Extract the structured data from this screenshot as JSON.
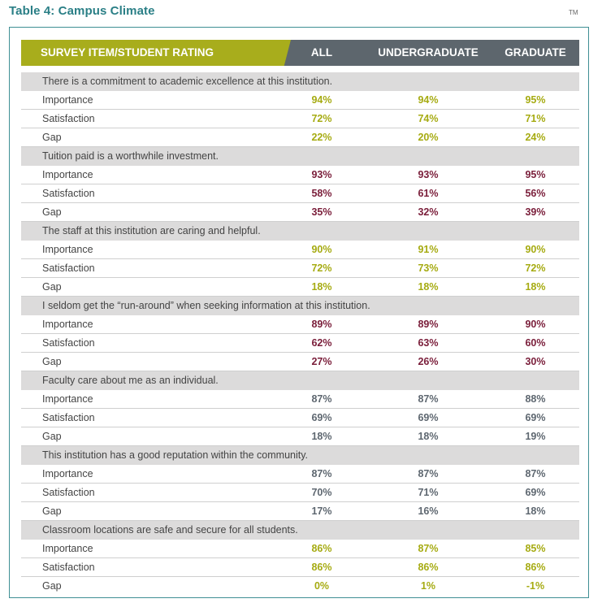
{
  "title": "Table 4: Campus Climate",
  "tm": "TM",
  "header": {
    "item": "SURVEY ITEM/STUDENT RATING",
    "all": "ALL",
    "undergrad": "UNDERGRADUATE",
    "grad": "GRADUATE"
  },
  "colors": {
    "lime": "#a6ab12",
    "maroon": "#7a1e3a",
    "gray": "#5e6770",
    "header_lime": "#a8ad1c",
    "header_gray": "#5d666d",
    "title_teal": "#2a7f86"
  },
  "items": [
    {
      "question": "There is a commitment to academic excellence at this institution.",
      "color": "lime",
      "rows": [
        {
          "label": "Importance",
          "all": "94%",
          "undergrad": "94%",
          "grad": "95%"
        },
        {
          "label": "Satisfaction",
          "all": "72%",
          "undergrad": "74%",
          "grad": "71%"
        },
        {
          "label": "Gap",
          "all": "22%",
          "undergrad": "20%",
          "grad": "24%"
        }
      ]
    },
    {
      "question": "Tuition paid is a worthwhile investment.",
      "color": "maroon",
      "rows": [
        {
          "label": "Importance",
          "all": "93%",
          "undergrad": "93%",
          "grad": "95%"
        },
        {
          "label": "Satisfaction",
          "all": "58%",
          "undergrad": "61%",
          "grad": "56%"
        },
        {
          "label": "Gap",
          "all": "35%",
          "undergrad": "32%",
          "grad": "39%"
        }
      ]
    },
    {
      "question": "The staff at this institution are caring and helpful.",
      "color": "lime",
      "rows": [
        {
          "label": "Importance",
          "all": "90%",
          "undergrad": "91%",
          "grad": "90%"
        },
        {
          "label": "Satisfaction",
          "all": "72%",
          "undergrad": "73%",
          "grad": "72%"
        },
        {
          "label": "Gap",
          "all": "18%",
          "undergrad": "18%",
          "grad": "18%"
        }
      ]
    },
    {
      "question": "I seldom get the “run-around” when seeking information at this institution.",
      "color": "maroon",
      "rows": [
        {
          "label": "Importance",
          "all": "89%",
          "undergrad": "89%",
          "grad": "90%"
        },
        {
          "label": "Satisfaction",
          "all": "62%",
          "undergrad": "63%",
          "grad": "60%"
        },
        {
          "label": "Gap",
          "all": "27%",
          "undergrad": "26%",
          "grad": "30%"
        }
      ]
    },
    {
      "question": "Faculty care about me as an individual.",
      "color": "gray",
      "rows": [
        {
          "label": "Importance",
          "all": "87%",
          "undergrad": "87%",
          "grad": "88%"
        },
        {
          "label": "Satisfaction",
          "all": "69%",
          "undergrad": "69%",
          "grad": "69%"
        },
        {
          "label": "Gap",
          "all": "18%",
          "undergrad": "18%",
          "grad": "19%"
        }
      ]
    },
    {
      "question": "This institution has a good reputation within the community.",
      "color": "gray",
      "rows": [
        {
          "label": "Importance",
          "all": "87%",
          "undergrad": "87%",
          "grad": "87%"
        },
        {
          "label": "Satisfaction",
          "all": "70%",
          "undergrad": "71%",
          "grad": "69%"
        },
        {
          "label": "Gap",
          "all": "17%",
          "undergrad": "16%",
          "grad": "18%"
        }
      ]
    },
    {
      "question": "Classroom locations are safe and secure for all students.",
      "color": "lime",
      "rows": [
        {
          "label": "Importance",
          "all": "86%",
          "undergrad": "87%",
          "grad": "85%"
        },
        {
          "label": "Satisfaction",
          "all": "86%",
          "undergrad": "86%",
          "grad": "86%"
        },
        {
          "label": "Gap",
          "all": "0%",
          "undergrad": "1%",
          "grad": "-1%"
        }
      ]
    }
  ]
}
